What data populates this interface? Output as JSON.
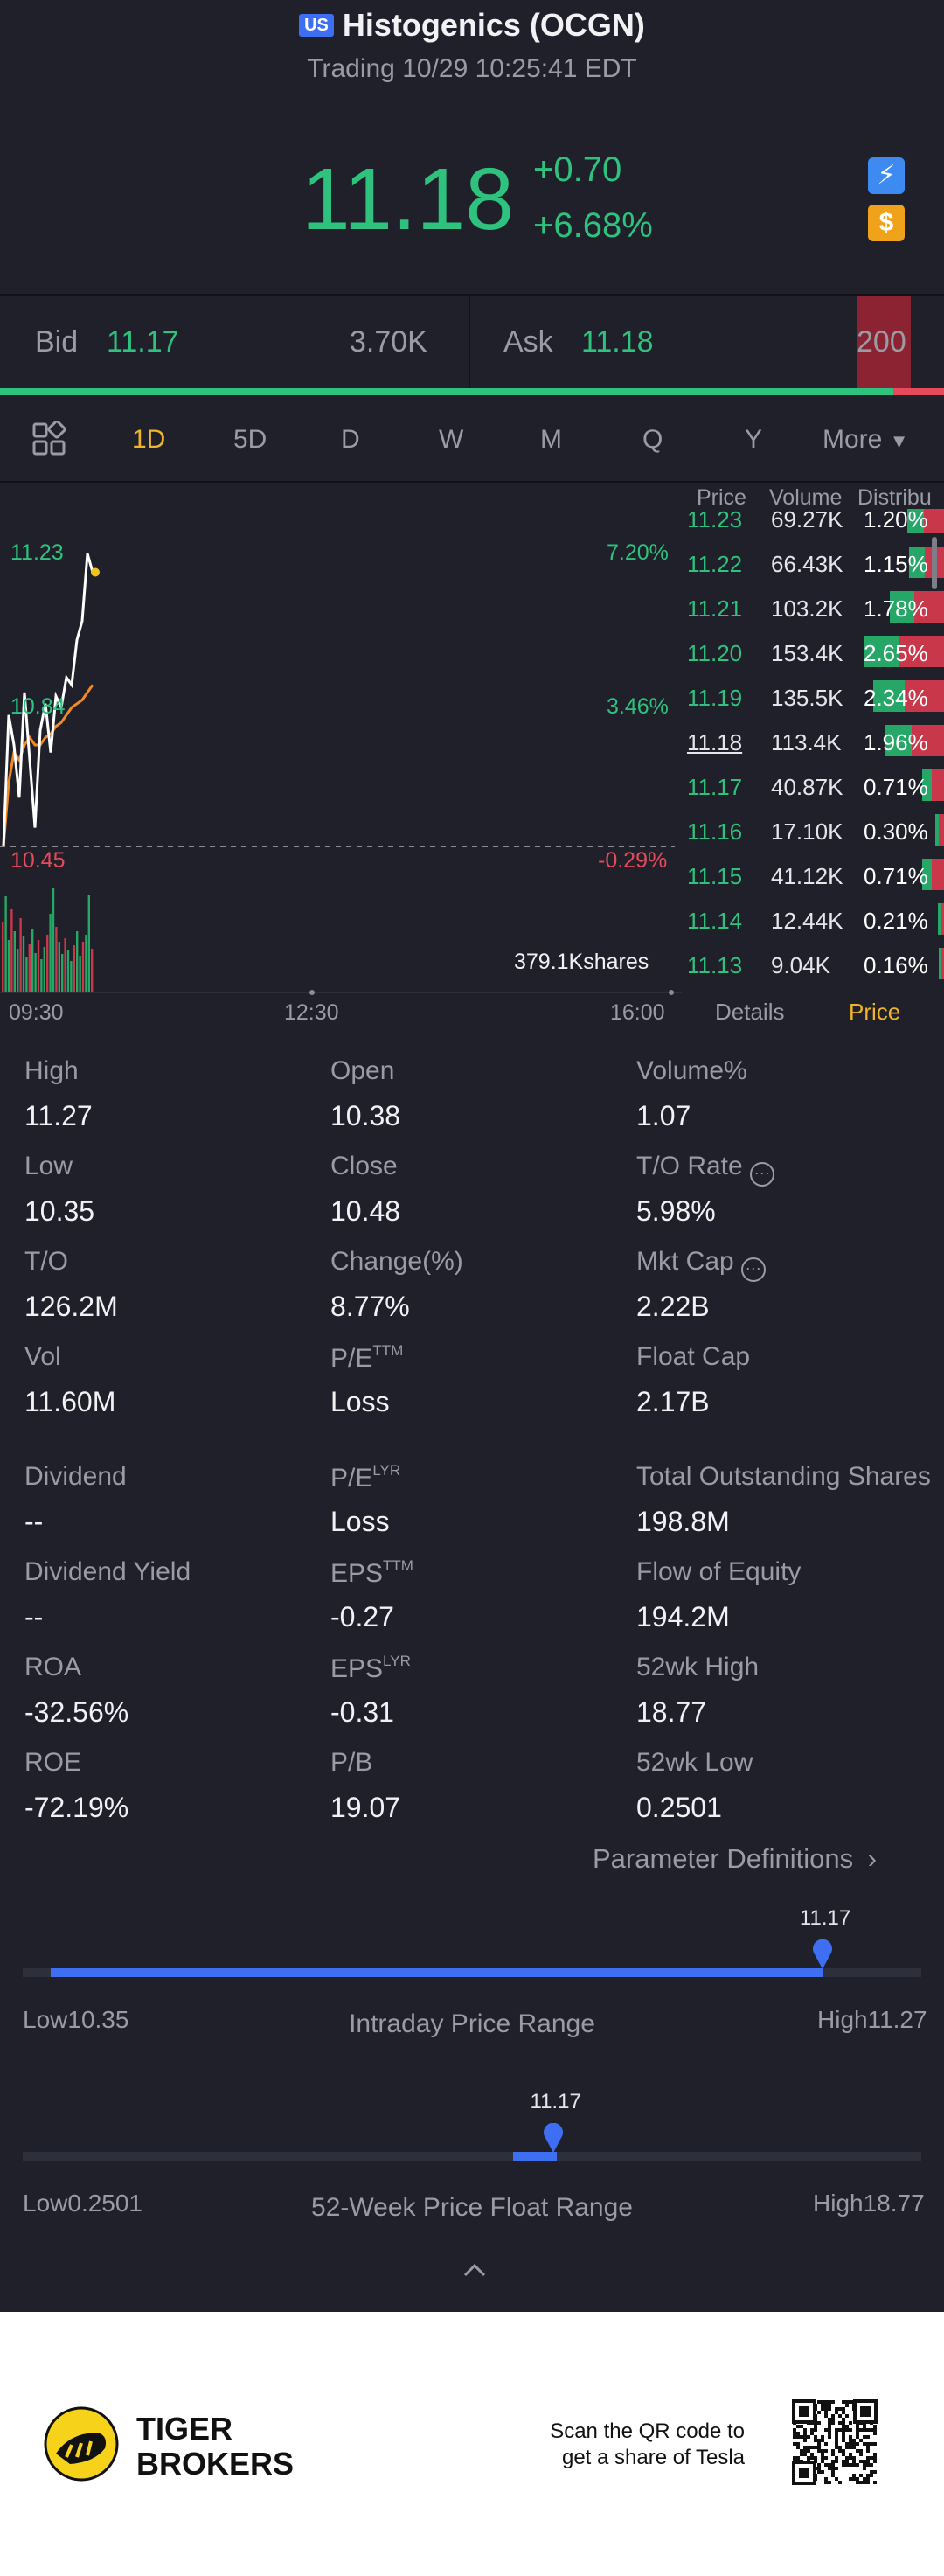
{
  "header": {
    "market_flag": "US",
    "title": "Histogenics (OCGN)",
    "subtitle": "Trading 10/29 10:25:41 EDT"
  },
  "quote": {
    "price": "11.18",
    "change": "+0.70",
    "change_pct": "+6.68%"
  },
  "bidask": {
    "bid_label": "Bid",
    "bid_price": "11.17",
    "bid_size": "3.70K",
    "ask_label": "Ask",
    "ask_price": "11.18",
    "ask_size": "200"
  },
  "tabs": [
    "1D",
    "5D",
    "D",
    "W",
    "M",
    "Q",
    "Y",
    "More"
  ],
  "active_tab": "1D",
  "intraday_chart": {
    "high_label": "11.23",
    "high_pct": "7.20%",
    "mid_label": "10.84",
    "mid_pct": "3.46%",
    "low_label": "10.45",
    "low_pct": "-0.29%",
    "volume_label": "379.1Kshares",
    "times": [
      "09:30",
      "12:30",
      "16:00"
    ]
  },
  "chart_data": {
    "type": "line",
    "title": "",
    "xlabel": "",
    "ylabel": "",
    "x_ticks": [
      "09:30",
      "12:30",
      "16:00"
    ],
    "ylim": [
      10.45,
      11.23
    ],
    "series": [
      {
        "values": [
          10.45,
          10.8,
          10.72,
          10.58,
          10.86,
          10.68,
          10.5,
          10.76,
          10.83,
          10.7,
          10.85,
          10.82,
          10.9,
          10.88,
          11.0,
          11.05,
          11.23,
          11.18
        ]
      },
      {
        "values": [
          10.45,
          10.62,
          10.7,
          10.68,
          10.72,
          10.74,
          10.72,
          10.72,
          10.74,
          10.75,
          10.77,
          10.78,
          10.8,
          10.82,
          10.83,
          10.84,
          10.86,
          10.88
        ]
      }
    ]
  },
  "orderbook": {
    "headers": [
      "Price",
      "Volume",
      "Distribu"
    ],
    "rows": [
      {
        "price": "11.23",
        "volume": "69.27K",
        "dist": "1.20%",
        "pct": 1.2
      },
      {
        "price": "11.22",
        "volume": "66.43K",
        "dist": "1.15%",
        "pct": 1.15
      },
      {
        "price": "11.21",
        "volume": "103.2K",
        "dist": "1.78%",
        "pct": 1.78
      },
      {
        "price": "11.20",
        "volume": "153.4K",
        "dist": "2.65%",
        "pct": 2.65
      },
      {
        "price": "11.19",
        "volume": "135.5K",
        "dist": "2.34%",
        "pct": 2.34
      },
      {
        "price": "11.18",
        "volume": "113.4K",
        "dist": "1.96%",
        "pct": 1.96
      },
      {
        "price": "11.17",
        "volume": "40.87K",
        "dist": "0.71%",
        "pct": 0.71
      },
      {
        "price": "11.16",
        "volume": "17.10K",
        "dist": "0.30%",
        "pct": 0.3
      },
      {
        "price": "11.15",
        "volume": "41.12K",
        "dist": "0.71%",
        "pct": 0.71
      },
      {
        "price": "11.14",
        "volume": "12.44K",
        "dist": "0.21%",
        "pct": 0.21
      },
      {
        "price": "11.13",
        "volume": "9.04K",
        "dist": "0.16%",
        "pct": 0.16
      }
    ],
    "tab_details": "Details",
    "tab_price": "Price"
  },
  "stats": {
    "high": {
      "label": "High",
      "value": "11.27"
    },
    "open": {
      "label": "Open",
      "value": "10.38"
    },
    "volume_pct": {
      "label": "Volume%",
      "value": "1.07"
    },
    "low": {
      "label": "Low",
      "value": "10.35"
    },
    "close": {
      "label": "Close",
      "value": "10.48"
    },
    "to_rate": {
      "label": "T/O Rate",
      "value": "5.98%"
    },
    "to": {
      "label": "T/O",
      "value": "126.2M"
    },
    "change_pct": {
      "label": "Change(%)",
      "value": "8.77%"
    },
    "mkt_cap": {
      "label": "Mkt Cap",
      "value": "2.22B"
    },
    "vol": {
      "label": "Vol",
      "value": "11.60M"
    },
    "pe_ttm": {
      "label": "P/E",
      "sup": "TTM",
      "value": "Loss"
    },
    "float_cap": {
      "label": "Float Cap",
      "value": "2.17B"
    },
    "dividend": {
      "label": "Dividend",
      "value": "--"
    },
    "pe_lyr": {
      "label": "P/E",
      "sup": "LYR",
      "value": "Loss"
    },
    "total_shares": {
      "label": "Total Outstanding Shares",
      "value": "198.8M"
    },
    "div_yield": {
      "label": "Dividend Yield",
      "value": "--"
    },
    "eps_ttm": {
      "label": "EPS",
      "sup": "TTM",
      "value": "-0.27"
    },
    "flow_equity": {
      "label": "Flow of Equity",
      "value": "194.2M"
    },
    "roa": {
      "label": "ROA",
      "value": "-32.56%"
    },
    "eps_lyr": {
      "label": "EPS",
      "sup": "LYR",
      "value": "-0.31"
    },
    "wk52_high": {
      "label": "52wk High",
      "value": "18.77"
    },
    "roe": {
      "label": "ROE",
      "value": "-72.19%"
    },
    "pb": {
      "label": "P/B",
      "value": "19.07"
    },
    "wk52_low": {
      "label": "52wk Low",
      "value": "0.2501"
    }
  },
  "param_def": "Parameter Definitions",
  "intraday_range": {
    "current": "11.17",
    "low": "Low10.35",
    "high": "High11.27",
    "title": "Intraday Price Range",
    "position": 0.89
  },
  "week52_range": {
    "current": "11.17",
    "low": "Low0.2501",
    "high": "High18.77",
    "title": "52-Week Price Float Range",
    "position": 0.59
  },
  "footer": {
    "brand_line1": "TIGER",
    "brand_line2": "BROKERS",
    "cta_line1": "Scan the QR code to",
    "cta_line2": "get a share of Tesla"
  },
  "colors": {
    "up": "#2ec27e",
    "down": "#e64a5b",
    "accent": "#f0b429",
    "range": "#3e6ff2"
  }
}
